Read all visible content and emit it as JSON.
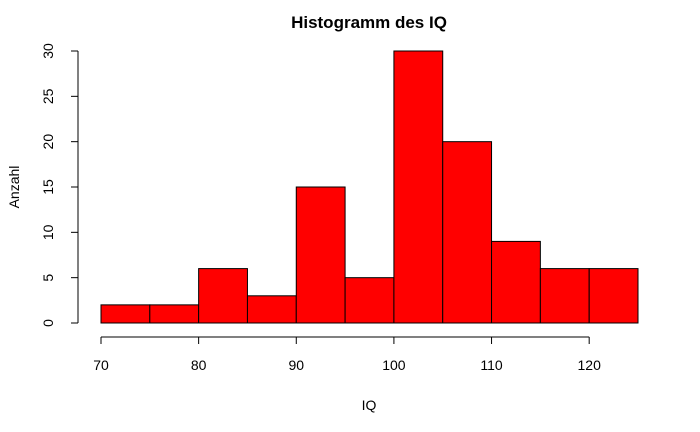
{
  "chart_data": {
    "type": "bar",
    "title": "Histogramm des IQ",
    "xlabel": "IQ",
    "ylabel": "Anzahl",
    "bins": [
      {
        "from": 70,
        "to": 75,
        "count": 2
      },
      {
        "from": 75,
        "to": 80,
        "count": 2
      },
      {
        "from": 80,
        "to": 85,
        "count": 6
      },
      {
        "from": 85,
        "to": 90,
        "count": 3
      },
      {
        "from": 90,
        "to": 95,
        "count": 15
      },
      {
        "from": 95,
        "to": 100,
        "count": 5
      },
      {
        "from": 100,
        "to": 105,
        "count": 30
      },
      {
        "from": 105,
        "to": 110,
        "count": 20
      },
      {
        "from": 110,
        "to": 115,
        "count": 9
      },
      {
        "from": 115,
        "to": 120,
        "count": 6
      },
      {
        "from": 120,
        "to": 125,
        "count": 6
      }
    ],
    "xticks": [
      70,
      80,
      90,
      100,
      110,
      120
    ],
    "yticks": [
      0,
      5,
      10,
      15,
      20,
      25,
      30
    ],
    "xlim": [
      70,
      125
    ],
    "ylim": [
      0,
      30
    ],
    "bar_color": "#ff0000",
    "bar_edge_color": "#000000",
    "grid": false,
    "legend": "none"
  }
}
